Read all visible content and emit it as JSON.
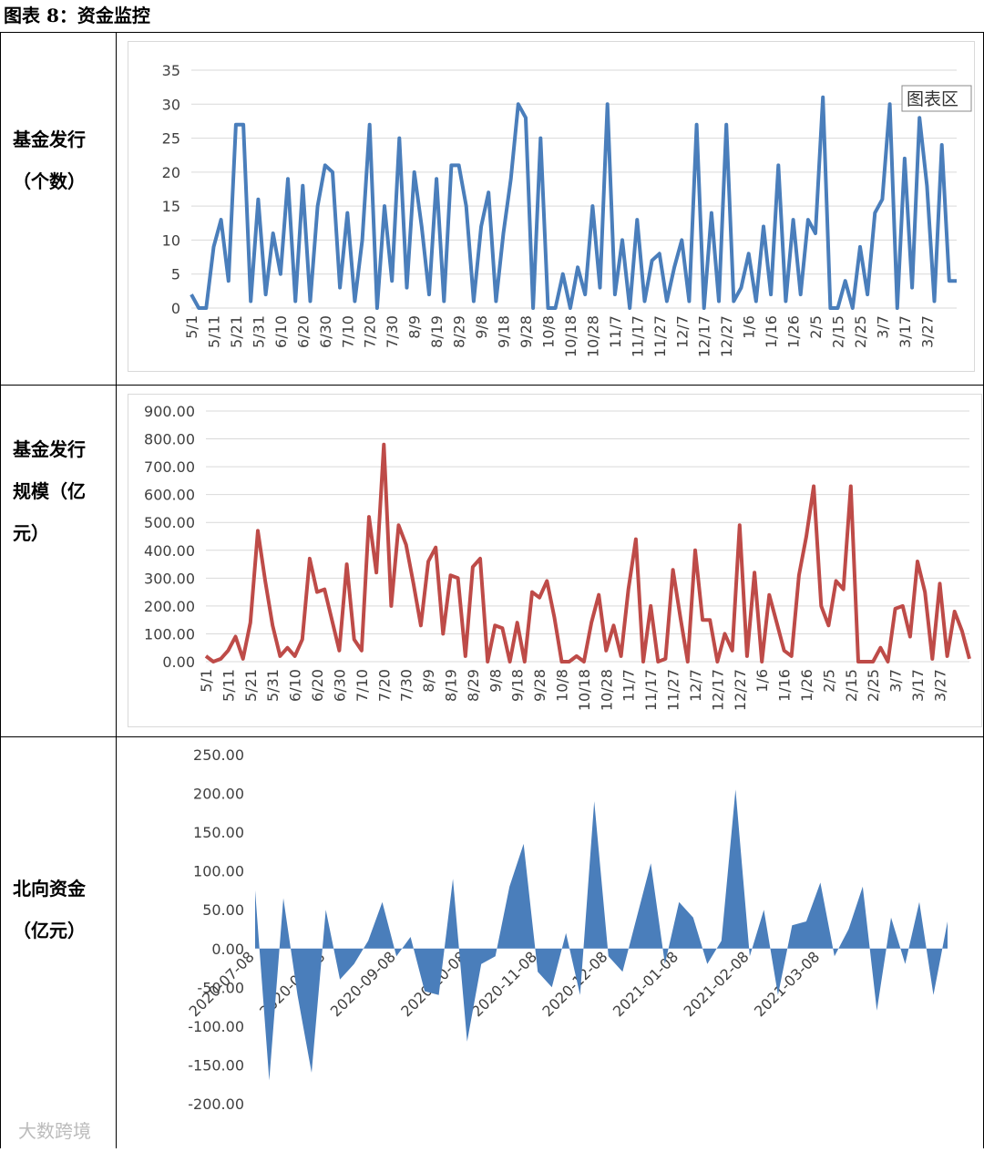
{
  "page_title": "图表 8：资金监控",
  "row_labels": [
    [
      "基金发行",
      "（个数）"
    ],
    [
      "基金发行",
      "规模（亿",
      "元）"
    ],
    [
      "北向资金",
      "（亿元）"
    ]
  ],
  "watermark": "大数跨境",
  "chart_data": [
    {
      "type": "line",
      "annotation": "图表区",
      "color": "#4a7ebb",
      "grid": true,
      "ylim": [
        0,
        35
      ],
      "yticks": [
        0,
        5,
        10,
        15,
        20,
        25,
        30,
        35
      ],
      "categories": [
        "5/1",
        null,
        null,
        "5/11",
        null,
        null,
        "5/21",
        null,
        null,
        "5/31",
        null,
        null,
        "6/10",
        null,
        null,
        "6/20",
        null,
        null,
        "6/30",
        null,
        null,
        "7/10",
        null,
        null,
        "7/20",
        null,
        null,
        "7/30",
        null,
        null,
        "8/9",
        null,
        null,
        "8/19",
        null,
        null,
        "8/29",
        null,
        null,
        "9/8",
        null,
        null,
        "9/18",
        null,
        null,
        "9/28",
        null,
        null,
        "10/8",
        null,
        null,
        "10/18",
        null,
        null,
        "10/28",
        null,
        null,
        "11/7",
        null,
        null,
        "11/17",
        null,
        null,
        "11/27",
        null,
        null,
        "12/7",
        null,
        null,
        "12/17",
        null,
        null,
        "12/27",
        null,
        null,
        "1/6",
        null,
        null,
        "1/16",
        null,
        null,
        "1/26",
        null,
        null,
        "2/5",
        null,
        null,
        "2/15",
        null,
        null,
        "2/25",
        null,
        null,
        "3/7",
        null,
        null,
        "3/17",
        null,
        null,
        "3/27",
        null,
        null,
        null,
        null
      ],
      "values": [
        2,
        0,
        0,
        9,
        13,
        4,
        27,
        27,
        1,
        16,
        2,
        11,
        5,
        19,
        1,
        18,
        1,
        15,
        21,
        20,
        3,
        14,
        1,
        10,
        27,
        0,
        15,
        4,
        25,
        3,
        20,
        12,
        2,
        19,
        1,
        21,
        21,
        15,
        1,
        12,
        17,
        1,
        11,
        19,
        30,
        28,
        0,
        25,
        0,
        0,
        5,
        0,
        6,
        2,
        15,
        3,
        30,
        2,
        10,
        0,
        13,
        1,
        7,
        8,
        1,
        6,
        10,
        1,
        27,
        0,
        14,
        1,
        27,
        1,
        3,
        8,
        1,
        12,
        2,
        21,
        1,
        13,
        2,
        13,
        11,
        31,
        0,
        0,
        4,
        0,
        9,
        2,
        14,
        16,
        30,
        0,
        22,
        3,
        28,
        18,
        1,
        24,
        4,
        4
      ]
    },
    {
      "type": "line",
      "color": "#be4b48",
      "grid": true,
      "ylim": [
        0,
        900
      ],
      "yticks": [
        {
          "value": 0,
          "label": "0.00"
        },
        {
          "value": 100,
          "label": "100.00"
        },
        {
          "value": 200,
          "label": "200.00"
        },
        {
          "value": 300,
          "label": "300.00"
        },
        {
          "value": 400,
          "label": "400.00"
        },
        {
          "value": 500,
          "label": "500.00"
        },
        {
          "value": 600,
          "label": "600.00"
        },
        {
          "value": 700,
          "label": "700.00"
        },
        {
          "value": 800,
          "label": "800.00"
        },
        {
          "value": 900,
          "label": "900.00"
        }
      ],
      "categories": [
        "5/1",
        null,
        null,
        "5/11",
        null,
        null,
        "5/21",
        null,
        null,
        "5/31",
        null,
        null,
        "6/10",
        null,
        null,
        "6/20",
        null,
        null,
        "6/30",
        null,
        null,
        "7/10",
        null,
        null,
        "7/20",
        null,
        null,
        "7/30",
        null,
        null,
        "8/9",
        null,
        null,
        "8/19",
        null,
        null,
        "8/29",
        null,
        null,
        "9/8",
        null,
        null,
        "9/18",
        null,
        null,
        "9/28",
        null,
        null,
        "10/8",
        null,
        null,
        "10/18",
        null,
        null,
        "10/28",
        null,
        null,
        "11/7",
        null,
        null,
        "11/17",
        null,
        null,
        "11/27",
        null,
        null,
        "12/7",
        null,
        null,
        "12/17",
        null,
        null,
        "12/27",
        null,
        null,
        "1/6",
        null,
        null,
        "1/16",
        null,
        null,
        "1/26",
        null,
        null,
        "2/5",
        null,
        null,
        "2/15",
        null,
        null,
        "2/25",
        null,
        null,
        "3/7",
        null,
        null,
        "3/17",
        null,
        null,
        "3/27",
        null,
        null,
        null,
        null
      ],
      "values": [
        20,
        0,
        10,
        40,
        90,
        10,
        140,
        470,
        290,
        130,
        20,
        50,
        20,
        80,
        370,
        250,
        260,
        150,
        40,
        350,
        80,
        40,
        520,
        320,
        780,
        200,
        490,
        420,
        280,
        130,
        360,
        410,
        100,
        310,
        300,
        20,
        340,
        370,
        0,
        130,
        120,
        0,
        140,
        0,
        250,
        230,
        290,
        160,
        0,
        0,
        20,
        0,
        140,
        240,
        40,
        130,
        20,
        260,
        440,
        0,
        200,
        0,
        10,
        330,
        160,
        0,
        400,
        150,
        150,
        0,
        100,
        40,
        490,
        20,
        320,
        0,
        240,
        140,
        40,
        20,
        310,
        450,
        630,
        200,
        130,
        290,
        260,
        630,
        0,
        0,
        0,
        50,
        0,
        190,
        200,
        90,
        360,
        250,
        10,
        280,
        20,
        180,
        110,
        10
      ]
    },
    {
      "type": "area",
      "color": "#4a7ebb",
      "grid": false,
      "ylim": [
        -200,
        250
      ],
      "yticks": [
        {
          "value": -200,
          "label": "-200.00"
        },
        {
          "value": -150,
          "label": "-150.00"
        },
        {
          "value": -100,
          "label": "-100.00"
        },
        {
          "value": -50,
          "label": "-50.00"
        },
        {
          "value": 0,
          "label": "0.00"
        },
        {
          "value": 50,
          "label": "50.00"
        },
        {
          "value": 100,
          "label": "100.00"
        },
        {
          "value": 150,
          "label": "150.00"
        },
        {
          "value": 200,
          "label": "200.00"
        },
        {
          "value": 250,
          "label": "250.00"
        }
      ],
      "categories": [
        "2020-07-08",
        null,
        null,
        null,
        null,
        "2020-08-08",
        null,
        null,
        null,
        null,
        "2020-09-08",
        null,
        null,
        null,
        null,
        "2020-10-08",
        null,
        null,
        null,
        null,
        "2020-11-08",
        null,
        null,
        null,
        null,
        "2020-12-08",
        null,
        null,
        null,
        null,
        "2021-01-08",
        null,
        null,
        null,
        null,
        "2021-02-08",
        null,
        null,
        null,
        null,
        "2021-03-08",
        null,
        null,
        null,
        null,
        null,
        null,
        null,
        null,
        null
      ],
      "values": [
        75,
        -170,
        65,
        -60,
        -160,
        50,
        -40,
        -20,
        10,
        60,
        -10,
        15,
        -55,
        -60,
        90,
        -120,
        -20,
        -10,
        80,
        135,
        -30,
        -50,
        20,
        -60,
        190,
        -10,
        -30,
        40,
        110,
        -20,
        60,
        40,
        -20,
        10,
        205,
        -10,
        50,
        -60,
        30,
        35,
        85,
        -10,
        25,
        80,
        -80,
        40,
        -20,
        60,
        -60,
        35
      ]
    }
  ]
}
